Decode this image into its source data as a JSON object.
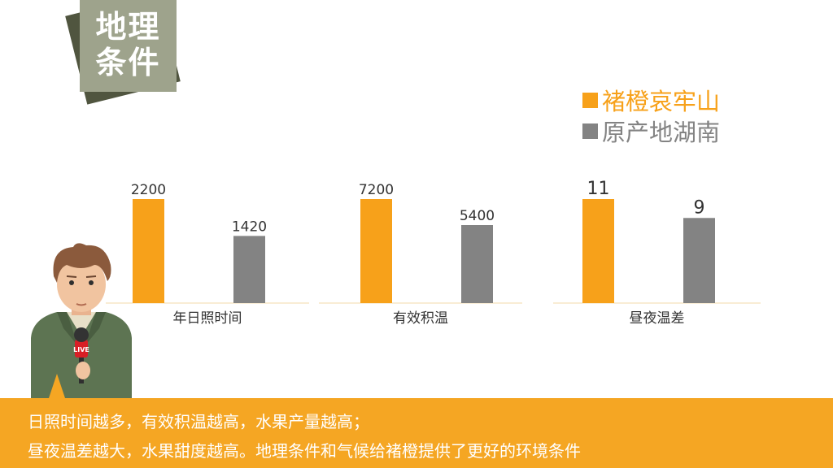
{
  "title": {
    "line1": "地理",
    "line2": "条件"
  },
  "colors": {
    "series_a": "#f7a11a",
    "series_b": "#838383",
    "footer_bg": "#f5a623",
    "title_bg": "#9ea38c"
  },
  "chart_data": [
    {
      "type": "bar",
      "categories": [
        "年日照时间"
      ],
      "series": [
        {
          "name": "褚橙哀牢山",
          "values": [
            2200
          ]
        },
        {
          "name": "原产地湖南",
          "values": [
            1420
          ]
        }
      ],
      "data_labels": [
        "2200",
        "1420"
      ]
    },
    {
      "type": "bar",
      "categories": [
        "有效积温"
      ],
      "series": [
        {
          "name": "褚橙哀牢山",
          "values": [
            7200
          ]
        },
        {
          "name": "原产地湖南",
          "values": [
            5400
          ]
        }
      ],
      "data_labels": [
        "7200",
        "5400"
      ]
    },
    {
      "type": "bar",
      "categories": [
        "昼夜温差"
      ],
      "series": [
        {
          "name": "褚橙哀牢山",
          "values": [
            11
          ]
        },
        {
          "name": "原产地湖南",
          "values": [
            9
          ]
        }
      ],
      "data_labels": [
        "11",
        "9"
      ]
    }
  ],
  "legend": [
    {
      "label": "褚橙哀牢山",
      "color": "#f7a11a"
    },
    {
      "label": "原产地湖南",
      "color": "#838383"
    }
  ],
  "footer": {
    "line1": "日照时间越多，有效积温越高，水果产量越高；",
    "line2": "昼夜温差越大，水果甜度越高。地理条件和气候给褚橙提供了更好的环境条件"
  },
  "reporter": {
    "mic_label": "LIVE"
  }
}
